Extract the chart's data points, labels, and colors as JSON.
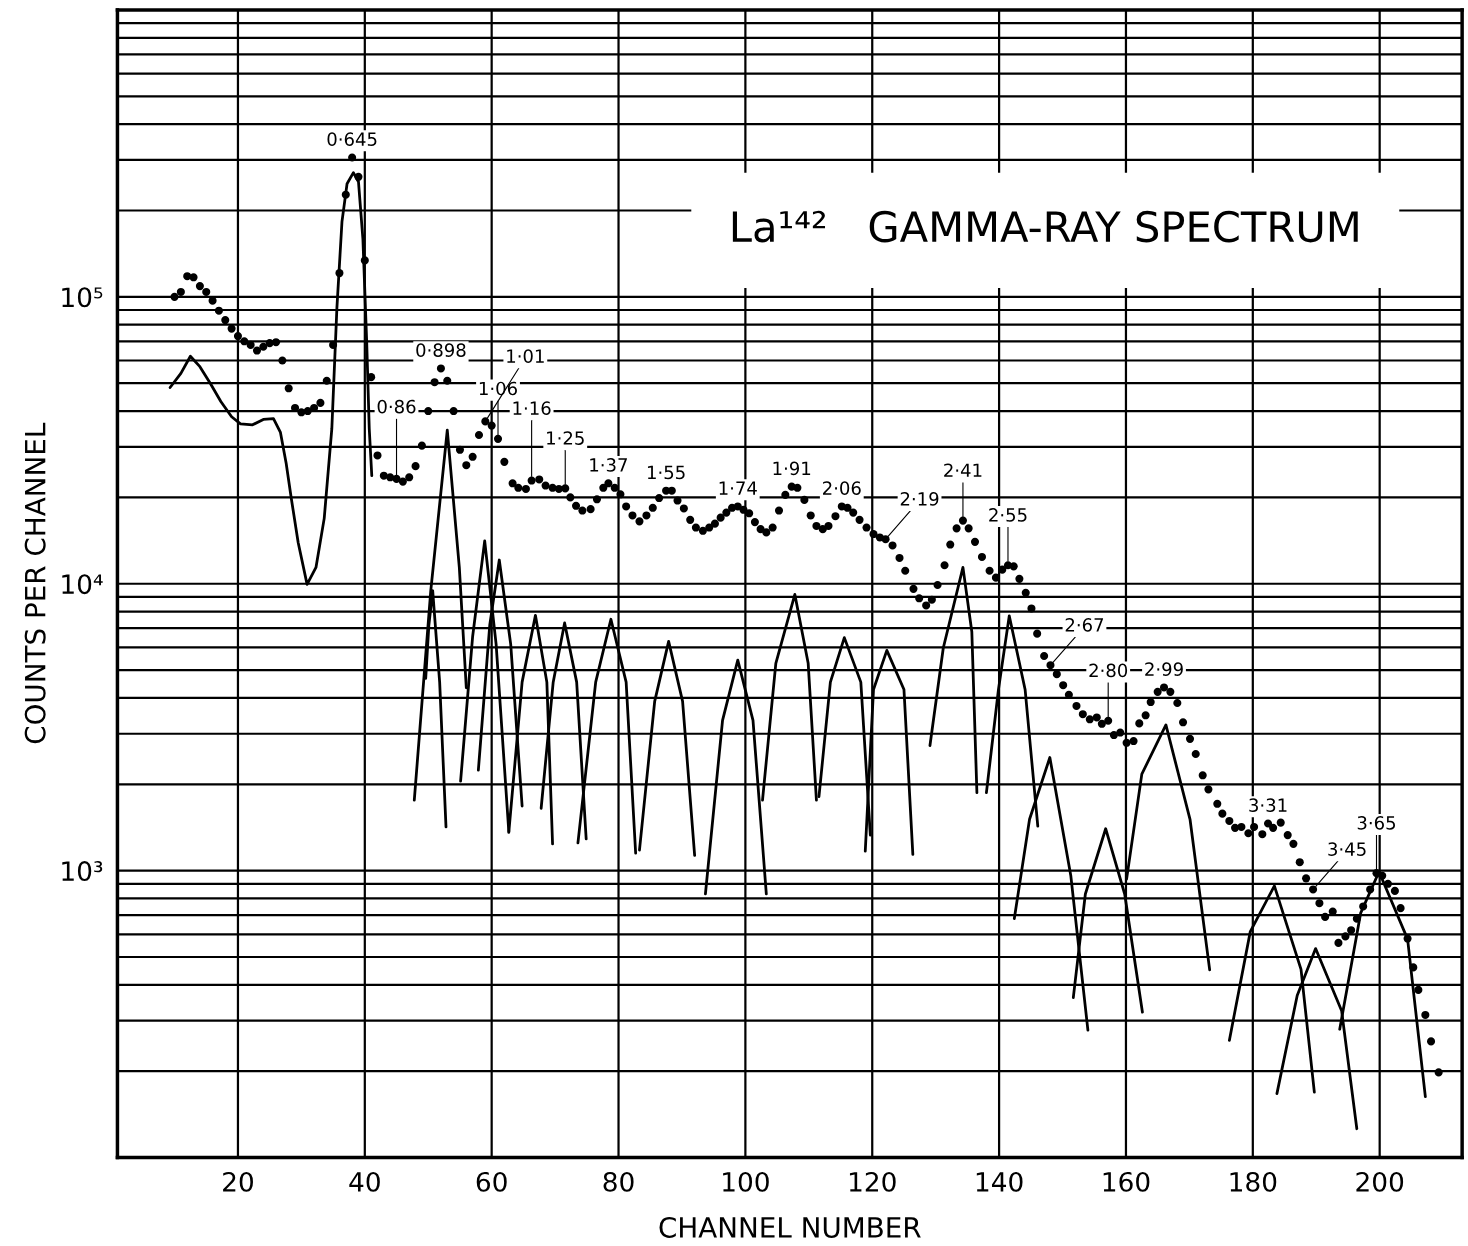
{
  "chart_data": {
    "type": "scatter",
    "title": "La¹⁴²   GAMMA-RAY SPECTRUM",
    "xlabel": "CHANNEL NUMBER",
    "ylabel": "COUNTS PER CHANNEL",
    "xlim": [
      1,
      213
    ],
    "xticks": [
      20,
      40,
      60,
      80,
      100,
      120,
      140,
      160,
      180,
      200
    ],
    "ylim": [
      100,
      1000000
    ],
    "yticks": [
      {
        "value": 1000,
        "label": "10³"
      },
      {
        "value": 10000,
        "label": "10⁴"
      },
      {
        "value": 100000,
        "label": "10⁵"
      }
    ],
    "log": true,
    "grid": true,
    "series": [
      {
        "marker": "circle",
        "color": "#000000",
        "x": [
          10,
          11,
          12,
          13,
          14,
          15,
          16,
          17,
          18,
          19,
          20,
          21,
          22,
          23,
          24,
          25,
          26,
          27,
          28,
          29,
          30,
          31,
          32,
          33,
          34,
          35,
          36,
          37,
          38,
          39,
          40,
          41,
          42,
          43,
          44,
          45,
          46,
          47,
          48,
          49,
          50,
          51,
          52,
          53,
          54,
          55,
          56,
          57,
          58,
          59,
          60,
          61,
          62,
          63.3,
          64.2,
          65.4,
          66.3,
          67.5,
          68.5,
          69.6,
          70.6,
          71.6,
          72.4,
          73.3,
          74.3,
          75.6,
          76.6,
          77.6,
          78.4,
          79.4,
          80.3,
          81.2,
          82.2,
          83.3,
          84.4,
          85.4,
          86.4,
          87.5,
          88.4,
          89.3,
          90.3,
          91.3,
          92.2,
          93.3,
          94.3,
          95.2,
          96.1,
          97,
          97.9,
          98.8,
          99.7,
          100.6,
          101.5,
          102.4,
          103.3,
          104.3,
          105.3,
          106.3,
          107.3,
          108.2,
          109.3,
          110.3,
          111.2,
          112.2,
          113.1,
          114.2,
          115.2,
          116.1,
          117,
          118,
          119.1,
          120.2,
          121.2,
          122.1,
          123.2,
          124.3,
          125.2,
          126.5,
          127.4,
          128.5,
          129.4,
          130.3,
          131.4,
          132.3,
          133.3,
          134.3,
          135.2,
          136.2,
          137.3,
          138.5,
          139.5,
          140.5,
          141.4,
          142.3,
          143.2,
          144.2,
          145.1,
          146,
          147.1,
          148.1,
          149.1,
          150.1,
          151,
          152.2,
          153.2,
          154.3,
          155.4,
          156.2,
          157.2,
          158.1,
          159.1,
          160.1,
          161.2,
          162.1,
          163.1,
          163.9,
          165,
          166,
          167,
          168.1,
          169,
          170.1,
          171,
          172.1,
          173,
          174.4,
          175.2,
          176.3,
          177.2,
          178.2,
          179.3,
          180.2,
          181.5,
          182.4,
          183.2,
          184.4,
          185.5,
          186.4,
          187.4,
          188.4,
          189.5,
          190.5,
          191.4,
          192.6,
          193.5,
          194.6,
          195.5,
          196.4,
          197.4,
          198.5,
          199.5,
          200.4,
          201.3,
          202.4,
          203.3,
          204.4,
          205.3,
          206.1,
          207.2,
          208.1,
          209.3
        ],
        "values": [
          100000,
          104000,
          118000,
          117000,
          109000,
          104000,
          97000,
          89500,
          83000,
          77500,
          73000,
          70000,
          68000,
          65000,
          67000,
          69000,
          69500,
          60000,
          48000,
          41000,
          39600,
          40000,
          41000,
          42700,
          51000,
          68000,
          121000,
          227000,
          306000,
          262000,
          134000,
          52500,
          28000,
          23800,
          23500,
          23200,
          22700,
          23500,
          25700,
          30300,
          40000,
          50400,
          56300,
          51000,
          40000,
          29300,
          25900,
          27700,
          33000,
          36800,
          35600,
          32000,
          26600,
          22400,
          21600,
          21400,
          22900,
          23100,
          22000,
          21600,
          21400,
          21500,
          20000,
          18700,
          18000,
          18200,
          19700,
          21600,
          22400,
          21600,
          20500,
          18600,
          17300,
          16500,
          17300,
          18400,
          19900,
          21100,
          21100,
          19500,
          18300,
          16700,
          15700,
          15300,
          15700,
          16200,
          17000,
          17700,
          18400,
          18600,
          18100,
          17600,
          16400,
          15500,
          15100,
          15700,
          18000,
          20400,
          21800,
          21600,
          19600,
          17300,
          15900,
          15500,
          15900,
          17200,
          18600,
          18400,
          17700,
          16700,
          15700,
          14900,
          14500,
          14300,
          13600,
          12300,
          11100,
          9600,
          8900,
          8400,
          8800,
          9900,
          11600,
          13700,
          15600,
          16600,
          15600,
          14000,
          12400,
          11100,
          10500,
          11200,
          11600,
          11500,
          10400,
          9300,
          8200,
          6700,
          5600,
          5200,
          4840,
          4430,
          4100,
          3750,
          3510,
          3370,
          3420,
          3250,
          3330,
          2970,
          3030,
          2790,
          2830,
          3260,
          3480,
          3870,
          4200,
          4350,
          4200,
          3840,
          3290,
          2880,
          2550,
          2150,
          1920,
          1710,
          1580,
          1490,
          1410,
          1420,
          1350,
          1420,
          1340,
          1460,
          1410,
          1470,
          1330,
          1240,
          1070,
          940,
          860,
          770,
          690,
          720,
          560,
          590,
          620,
          680,
          750,
          860,
          980,
          960,
          900,
          850,
          740,
          580,
          460,
          384,
          314,
          254,
          198
        ]
      },
      {
        "type": "line",
        "color": "#000000",
        "x": [
          9.3,
          11,
          12.5,
          14,
          15.7,
          17.3,
          19,
          20.4,
          22.3,
          24,
          25.6,
          26.7,
          27.6,
          28.4,
          29.5,
          30.9,
          32.3,
          33.6,
          34.8,
          35.6,
          36.4,
          37.2,
          38.2,
          39,
          39.7,
          40.3,
          40.7,
          41.1
        ],
        "values": [
          48300,
          54100,
          62100,
          57100,
          49700,
          43200,
          38200,
          36100,
          35800,
          37400,
          37600,
          33700,
          26300,
          19900,
          13900,
          9950,
          11400,
          16900,
          34700,
          91500,
          183000,
          248000,
          271000,
          252000,
          159000,
          69300,
          34700,
          23800
        ]
      },
      {
        "type": "line",
        "color": "#000000",
        "x": [
          49.6,
          50.1,
          50.7,
          51.8,
          52.8
        ],
        "values": [
          4680,
          7180,
          9460,
          4540,
          1420
        ]
      },
      {
        "type": "line",
        "color": "#000000",
        "x": [
          47.8,
          50.4,
          53.0,
          54.9,
          56.0
        ],
        "values": [
          1760,
          9460,
          34300,
          11400,
          4340
        ]
      },
      {
        "type": "line",
        "color": "#000000",
        "x": [
          55.1,
          57.0,
          58.9,
          60.7,
          62.7
        ],
        "values": [
          2050,
          6550,
          14100,
          6160,
          1370
        ]
      },
      {
        "type": "line",
        "color": "#000000",
        "x": [
          57.9,
          59.7,
          61.2,
          63.0,
          64.8
        ],
        "values": [
          2240,
          7180,
          12100,
          6160,
          1680
        ]
      },
      {
        "type": "line",
        "color": "#000000",
        "x": [
          62.7,
          64.8,
          66.9,
          68.7,
          69.6
        ],
        "values": [
          1360,
          4540,
          7760,
          4540,
          1240
        ]
      },
      {
        "type": "line",
        "color": "#000000",
        "x": [
          67.8,
          69.7,
          71.5,
          73.4,
          74.9
        ],
        "values": [
          1650,
          4540,
          7300,
          4540,
          1290
        ]
      },
      {
        "type": "line",
        "color": "#000000",
        "x": [
          73.6,
          76.4,
          78.8,
          81.2,
          82.7
        ],
        "values": [
          1250,
          4540,
          7520,
          4540,
          1150
        ]
      },
      {
        "type": "line",
        "color": "#000000",
        "x": [
          83.3,
          85.7,
          87.9,
          90.1,
          92.0
        ],
        "values": [
          1180,
          3890,
          6300,
          3890,
          1130
        ]
      },
      {
        "type": "line",
        "color": "#000000",
        "x": [
          93.7,
          96.4,
          98.8,
          101.2,
          103.3
        ],
        "values": [
          830,
          3340,
          5420,
          3340,
          830
        ]
      },
      {
        "type": "line",
        "color": "#000000",
        "x": [
          102.7,
          104.8,
          107.8,
          109.9,
          111.2
        ],
        "values": [
          1760,
          5280,
          9180,
          5280,
          1760
        ]
      },
      {
        "type": "line",
        "color": "#000000",
        "x": [
          111.6,
          113.4,
          115.6,
          118.2,
          119.7
        ],
        "values": [
          1810,
          4540,
          6490,
          4540,
          1330
        ]
      },
      {
        "type": "line",
        "color": "#000000",
        "x": [
          118.9,
          120.2,
          122.3,
          125.0,
          126.4
        ],
        "values": [
          1170,
          4280,
          5860,
          4280,
          1140
        ]
      },
      {
        "type": "line",
        "color": "#000000",
        "x": [
          129.1,
          131.2,
          134.3,
          135.7,
          136.5
        ],
        "values": [
          2730,
          5970,
          11400,
          6800,
          1870
        ]
      },
      {
        "type": "line",
        "color": "#000000",
        "x": [
          138.0,
          139.9,
          141.6,
          144.1,
          146.1
        ],
        "values": [
          1870,
          4280,
          7730,
          4280,
          1430
        ]
      },
      {
        "type": "line",
        "color": "#000000",
        "x": [
          142.4,
          144.8,
          148.0,
          151.3,
          154.0
        ],
        "values": [
          681,
          1510,
          2480,
          962,
          278
        ]
      },
      {
        "type": "line",
        "color": "#000000",
        "x": [
          151.7,
          153.6,
          156.8,
          159.8,
          162.6
        ],
        "values": [
          361,
          829,
          1400,
          829,
          321
        ]
      },
      {
        "type": "line",
        "color": "#000000",
        "x": [
          160.1,
          162.5,
          166.3,
          170.1,
          173.2
        ],
        "values": [
          934,
          2170,
          3220,
          1510,
          451
        ]
      },
      {
        "type": "line",
        "color": "#000000",
        "x": [
          176.3,
          179.6,
          183.4,
          187.6,
          189.7
        ],
        "values": [
          256,
          613,
          885,
          453,
          169
        ]
      },
      {
        "type": "line",
        "color": "#000000",
        "x": [
          183.8,
          187.0,
          189.9,
          194.0,
          196.4
        ],
        "values": [
          167,
          367,
          535,
          325,
          126
        ]
      },
      {
        "type": "line",
        "color": "#000000",
        "x": [
          193.7,
          197.0,
          199.9,
          204.4,
          207.2
        ],
        "values": [
          280,
          711,
          991,
          577,
          163
        ]
      }
    ],
    "annotations": [
      {
        "text": "0·645",
        "x": 38,
        "y": 306000
      },
      {
        "text": "0·898",
        "x": 52,
        "y": 56300
      },
      {
        "text": "0·86",
        "x": 45,
        "y": 23200
      },
      {
        "text": "1·06",
        "x": 61,
        "y": 32000
      },
      {
        "text": "1·01",
        "x": 59,
        "y": 36800
      },
      {
        "text": "1·25",
        "x": 71.6,
        "y": 21500
      },
      {
        "text": "1·16",
        "x": 66.3,
        "y": 22900
      },
      {
        "text": "1·37",
        "x": 78.4,
        "y": 22400
      },
      {
        "text": "1·55",
        "x": 87.5,
        "y": 21100
      },
      {
        "text": "1·74",
        "x": 98.8,
        "y": 18600
      },
      {
        "text": "1·91",
        "x": 107.3,
        "y": 21800
      },
      {
        "text": "2·06",
        "x": 115.2,
        "y": 18600
      },
      {
        "text": "2·19",
        "x": 122.1,
        "y": 14300
      },
      {
        "text": "2·41",
        "x": 134.3,
        "y": 16600
      },
      {
        "text": "2·55",
        "x": 141.4,
        "y": 11600
      },
      {
        "text": "2·67",
        "x": 148.1,
        "y": 5200
      },
      {
        "text": "2·80",
        "x": 157.2,
        "y": 3330
      },
      {
        "text": "2·99",
        "x": 166,
        "y": 4350
      },
      {
        "text": "3·31",
        "x": 182.4,
        "y": 1460
      },
      {
        "text": "3·45",
        "x": 189.5,
        "y": 860
      },
      {
        "text": "3·65",
        "x": 199.5,
        "y": 980
      }
    ]
  }
}
